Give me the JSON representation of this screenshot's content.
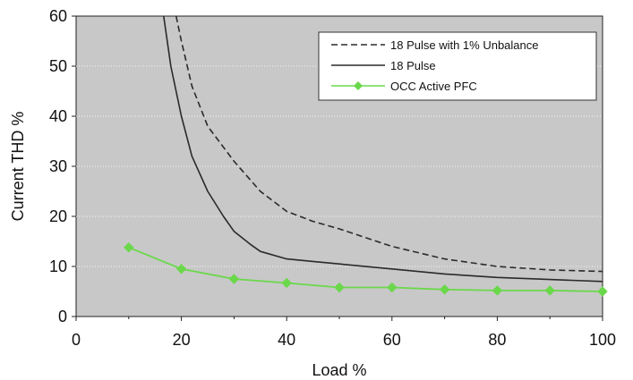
{
  "chart_data": {
    "type": "line",
    "title": "",
    "xlabel": "Load %",
    "ylabel": "Current THD %",
    "xlim": [
      0,
      100
    ],
    "ylim": [
      0,
      60
    ],
    "xticks": [
      0,
      20,
      40,
      60,
      80,
      100
    ],
    "yticks": [
      0,
      10,
      20,
      30,
      40,
      50,
      60
    ],
    "grid": "horizontal dotted",
    "legend_position": "top-right",
    "plot_background": "#c8c8c8",
    "series": [
      {
        "name": "18 Pulse with 1% Unbalance",
        "style": "dashed",
        "color": "#2a2a2a",
        "x": [
          19,
          20,
          22,
          25,
          30,
          35,
          40,
          45,
          50,
          60,
          70,
          80,
          90,
          100
        ],
        "y": [
          60,
          55,
          46,
          38,
          31,
          25,
          21,
          19,
          17.5,
          14,
          11.5,
          10,
          9.3,
          9
        ]
      },
      {
        "name": "18 Pulse",
        "style": "solid",
        "color": "#2a2a2a",
        "x": [
          16.5,
          18,
          20,
          22,
          25,
          28,
          30,
          33,
          35,
          40,
          45,
          50,
          60,
          70,
          80,
          90,
          100
        ],
        "y": [
          61,
          50,
          40,
          32,
          25,
          20,
          17,
          14.5,
          13,
          11.5,
          11,
          10.5,
          9.5,
          8.5,
          7.8,
          7.4,
          7
        ]
      },
      {
        "name": "OCC Active PFC",
        "style": "solid-markers",
        "color": "#6ad84a",
        "x": [
          10,
          20,
          30,
          40,
          50,
          60,
          70,
          80,
          90,
          100
        ],
        "y": [
          13.8,
          9.5,
          7.5,
          6.7,
          5.8,
          5.8,
          5.4,
          5.2,
          5.2,
          5
        ]
      }
    ]
  }
}
